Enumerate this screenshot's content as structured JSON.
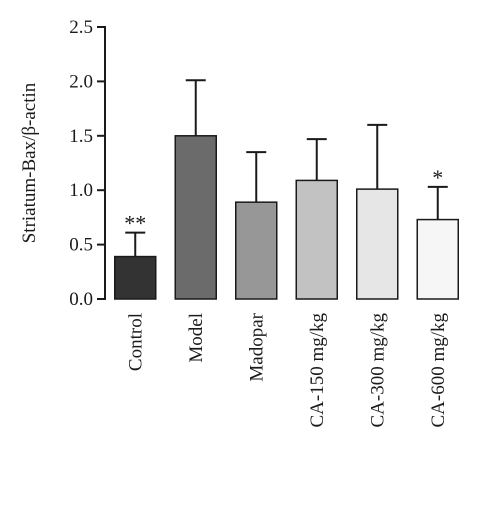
{
  "chart_data": {
    "type": "bar",
    "title": "",
    "xlabel": "",
    "ylabel": "Striatum-Bax/β-actin",
    "ylim": [
      0,
      2.5
    ],
    "yticks": [
      "0.0",
      "0.5",
      "1.0",
      "1.5",
      "2.0",
      "2.5"
    ],
    "categories": [
      "Control",
      "Model",
      "Madopar",
      "CA-150 mg/kg",
      "CA-300 mg/kg",
      "CA-600 mg/kg"
    ],
    "values": [
      0.39,
      1.5,
      0.89,
      1.09,
      1.01,
      0.73
    ],
    "error_upper": [
      0.22,
      0.51,
      0.46,
      0.38,
      0.59,
      0.3
    ],
    "significance": [
      "**",
      "",
      "",
      "",
      "",
      "*"
    ],
    "bar_colors": [
      "#333333",
      "#6b6b6b",
      "#979797",
      "#c2c2c2",
      "#e6e6e6",
      "#f6f6f6"
    ],
    "grid": false,
    "legend": "none"
  }
}
